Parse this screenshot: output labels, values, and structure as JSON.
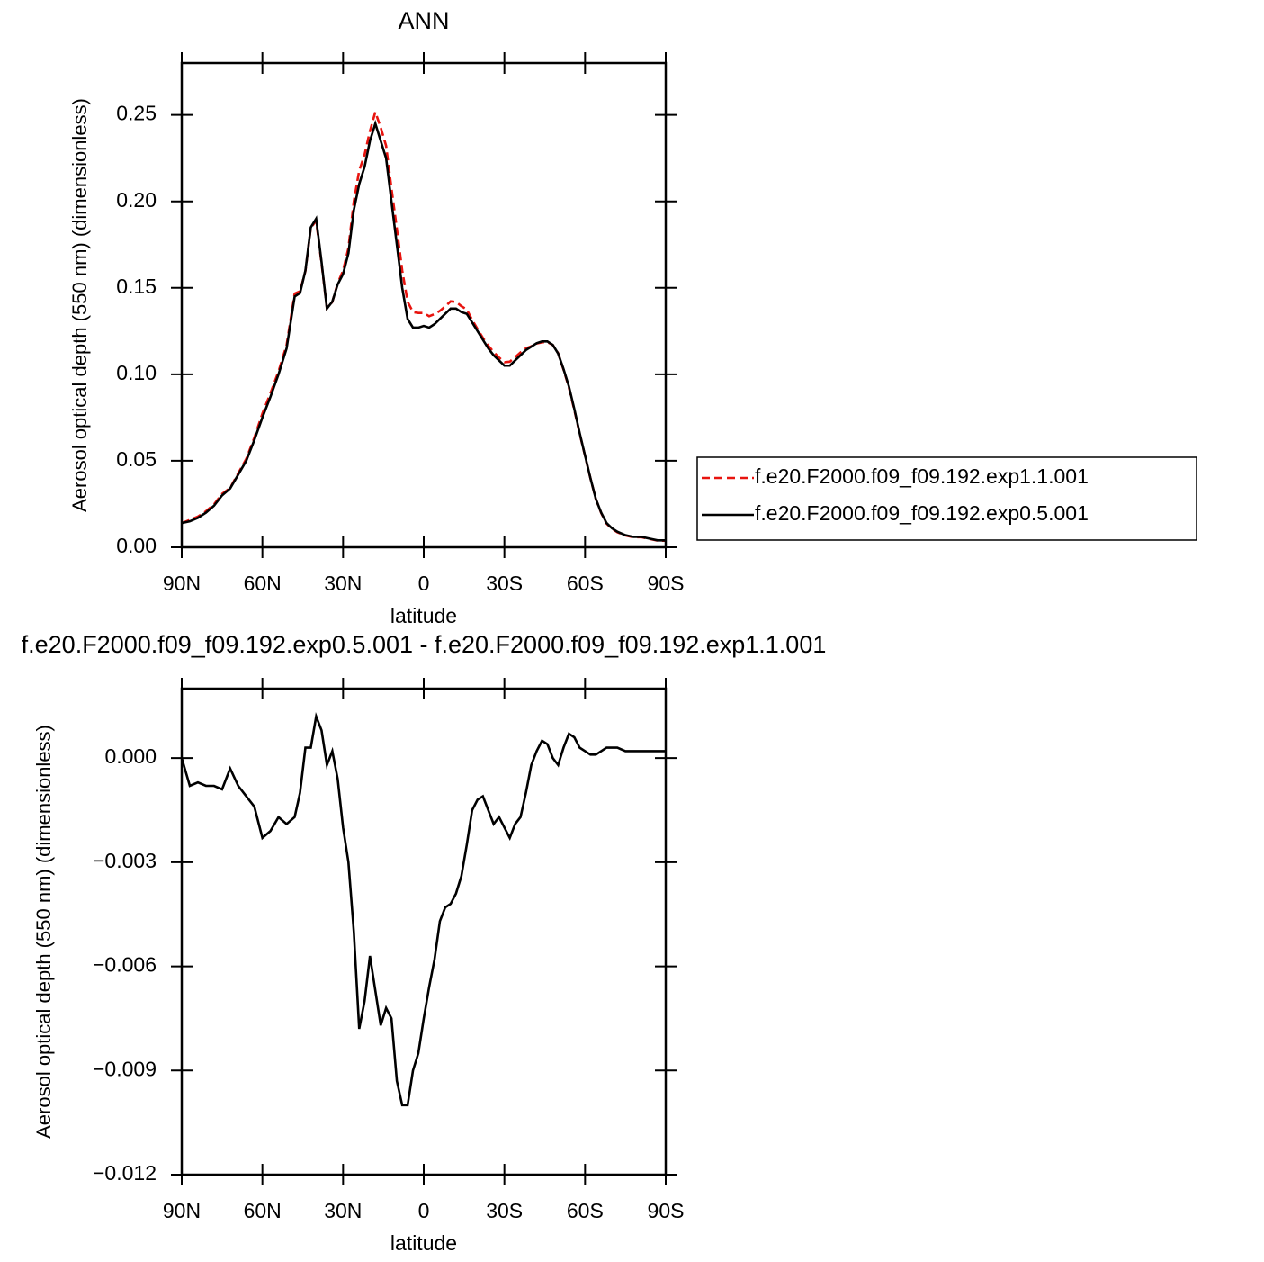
{
  "chart_data": [
    {
      "type": "line",
      "title": "ANN",
      "xlabel": "latitude",
      "ylabel": "Aerosol optical depth (550 nm) (dimensionless)",
      "x": [
        90,
        87,
        84,
        81,
        78,
        75,
        72,
        69,
        66,
        63,
        60,
        57,
        54,
        51,
        48,
        46,
        44,
        42,
        40,
        38,
        36,
        34,
        32,
        30,
        28,
        26,
        24,
        22,
        20,
        18,
        16,
        14,
        12,
        10,
        8,
        6,
        4,
        2,
        0,
        -2,
        -4,
        -6,
        -8,
        -10,
        -12,
        -14,
        -16,
        -18,
        -20,
        -22,
        -24,
        -26,
        -28,
        -30,
        -32,
        -34,
        -36,
        -38,
        -40,
        -42,
        -44,
        -46,
        -48,
        -50,
        -52,
        -54,
        -56,
        -58,
        -60,
        -62,
        -64,
        -66,
        -68,
        -70,
        -72,
        -75,
        -78,
        -81,
        -84,
        -87,
        -90
      ],
      "series": [
        {
          "name": "f.e20.F2000.f09_f09.192.exp1.1.001",
          "color": "#e8140f",
          "line_style": "dashed",
          "values": [
            0.014,
            0.0158,
            0.0177,
            0.0208,
            0.0248,
            0.0309,
            0.0343,
            0.0428,
            0.0511,
            0.0634,
            0.0773,
            0.0891,
            0.1017,
            0.1169,
            0.1467,
            0.148,
            0.1597,
            0.1847,
            0.1888,
            0.1642,
            0.1382,
            0.1418,
            0.1526,
            0.16,
            0.173,
            0.2,
            0.2178,
            0.227,
            0.2407,
            0.2517,
            0.2427,
            0.2322,
            0.2075,
            0.1843,
            0.16,
            0.142,
            0.136,
            0.1355,
            0.1355,
            0.1336,
            0.1348,
            0.1367,
            0.1393,
            0.1422,
            0.1419,
            0.1394,
            0.1375,
            0.1315,
            0.1262,
            0.1211,
            0.1165,
            0.1129,
            0.1097,
            0.107,
            0.1073,
            0.1099,
            0.1127,
            0.115,
            0.1162,
            0.1178,
            0.1185,
            0.1186,
            0.117,
            0.1122,
            0.1027,
            0.0923,
            0.0794,
            0.0657,
            0.0528,
            0.0399,
            0.0279,
            0.0198,
            0.0137,
            0.0107,
            0.0087,
            0.0068,
            0.0058,
            0.0058,
            0.0048,
            0.0038,
            0.0038
          ]
        },
        {
          "name": "f.e20.F2000.f09_f09.192.exp0.5.001",
          "color": "#000000",
          "line_style": "solid",
          "values": [
            0.014,
            0.015,
            0.017,
            0.02,
            0.024,
            0.03,
            0.034,
            0.042,
            0.05,
            0.062,
            0.075,
            0.087,
            0.1,
            0.115,
            0.145,
            0.147,
            0.16,
            0.185,
            0.19,
            0.165,
            0.138,
            0.142,
            0.152,
            0.158,
            0.17,
            0.195,
            0.21,
            0.22,
            0.235,
            0.245,
            0.235,
            0.225,
            0.2,
            0.175,
            0.15,
            0.132,
            0.127,
            0.127,
            0.128,
            0.127,
            0.129,
            0.132,
            0.135,
            0.138,
            0.138,
            0.136,
            0.135,
            0.13,
            0.125,
            0.12,
            0.115,
            0.111,
            0.108,
            0.105,
            0.105,
            0.108,
            0.111,
            0.114,
            0.116,
            0.118,
            0.119,
            0.119,
            0.117,
            0.112,
            0.103,
            0.093,
            0.08,
            0.066,
            0.053,
            0.04,
            0.028,
            0.02,
            0.014,
            0.011,
            0.009,
            0.007,
            0.006,
            0.006,
            0.005,
            0.004,
            0.004
          ]
        }
      ],
      "xlim": [
        90,
        -90
      ],
      "xticks": [
        {
          "value": 90,
          "label": "90N"
        },
        {
          "value": 60,
          "label": "60N"
        },
        {
          "value": 30,
          "label": "30N"
        },
        0,
        {
          "value": -30,
          "label": "30S"
        },
        {
          "value": -60,
          "label": "60S"
        },
        {
          "value": -90,
          "label": "90S"
        }
      ],
      "ylim": [
        0,
        0.28
      ],
      "yticks": [
        {
          "value": 0,
          "label": "0.00"
        },
        0.05,
        {
          "value": 0.1,
          "label": "0.10"
        },
        0.15,
        {
          "value": 0.2,
          "label": "0.20"
        },
        0.25
      ],
      "legend": true
    },
    {
      "type": "line",
      "title": "f.e20.F2000.f09_f09.192.exp0.5.001 - f.e20.F2000.f09_f09.192.exp1.1.001",
      "xlabel": "latitude",
      "ylabel": "Aerosol optical depth (550 nm) (dimensionless)",
      "x": [
        90,
        87,
        84,
        81,
        78,
        75,
        72,
        69,
        66,
        63,
        60,
        57,
        54,
        51,
        48,
        46,
        44,
        42,
        40,
        38,
        36,
        34,
        32,
        30,
        28,
        26,
        24,
        22,
        20,
        18,
        16,
        14,
        12,
        10,
        8,
        6,
        4,
        2,
        0,
        -2,
        -4,
        -6,
        -8,
        -10,
        -12,
        -14,
        -16,
        -18,
        -20,
        -22,
        -24,
        -26,
        -28,
        -30,
        -32,
        -34,
        -36,
        -38,
        -40,
        -42,
        -44,
        -46,
        -48,
        -50,
        -52,
        -54,
        -56,
        -58,
        -60,
        -62,
        -64,
        -66,
        -68,
        -70,
        -72,
        -75,
        -78,
        -81,
        -84,
        -87,
        -90
      ],
      "color": "#000000",
      "values": [
        0.0,
        -0.0008,
        -0.0007,
        -0.0008,
        -0.0008,
        -0.0009,
        -0.0003,
        -0.0008,
        -0.0011,
        -0.0014,
        -0.0023,
        -0.0021,
        -0.0017,
        -0.0019,
        -0.0017,
        -0.001,
        0.0003,
        0.0003,
        0.0012,
        0.0008,
        -0.0002,
        0.0002,
        -0.0006,
        -0.002,
        -0.003,
        -0.005,
        -0.0078,
        -0.007,
        -0.0057,
        -0.0067,
        -0.0077,
        -0.0072,
        -0.0075,
        -0.0093,
        -0.01,
        -0.01,
        -0.009,
        -0.0085,
        -0.0075,
        -0.0066,
        -0.0058,
        -0.0047,
        -0.0043,
        -0.0042,
        -0.0039,
        -0.0034,
        -0.0025,
        -0.0015,
        -0.0012,
        -0.0011,
        -0.0015,
        -0.0019,
        -0.0017,
        -0.002,
        -0.0023,
        -0.0019,
        -0.0017,
        -0.001,
        -0.0002,
        0.0002,
        0.0005,
        0.0004,
        0.0,
        -0.0002,
        0.0003,
        0.0007,
        0.0006,
        0.0003,
        0.0002,
        0.0001,
        0.0001,
        0.0002,
        0.0003,
        0.0003,
        0.0003,
        0.0002,
        0.0002,
        0.0002,
        0.0002,
        0.0002,
        0.0002
      ],
      "xlim": [
        90,
        -90
      ],
      "xticks": [
        {
          "value": 90,
          "label": "90N"
        },
        {
          "value": 60,
          "label": "60N"
        },
        {
          "value": 30,
          "label": "30N"
        },
        0,
        {
          "value": -30,
          "label": "30S"
        },
        {
          "value": -60,
          "label": "60S"
        },
        {
          "value": -90,
          "label": "90S"
        }
      ],
      "ylim": [
        -0.012,
        0.002
      ],
      "yticks": [
        {
          "value": 0,
          "label": "0.000"
        },
        {
          "value": -0.003,
          "label": "−0.003"
        },
        {
          "value": -0.006,
          "label": "−0.006"
        },
        {
          "value": -0.009,
          "label": "−0.009"
        },
        {
          "value": -0.012,
          "label": "−0.012"
        }
      ],
      "legend": false
    }
  ]
}
